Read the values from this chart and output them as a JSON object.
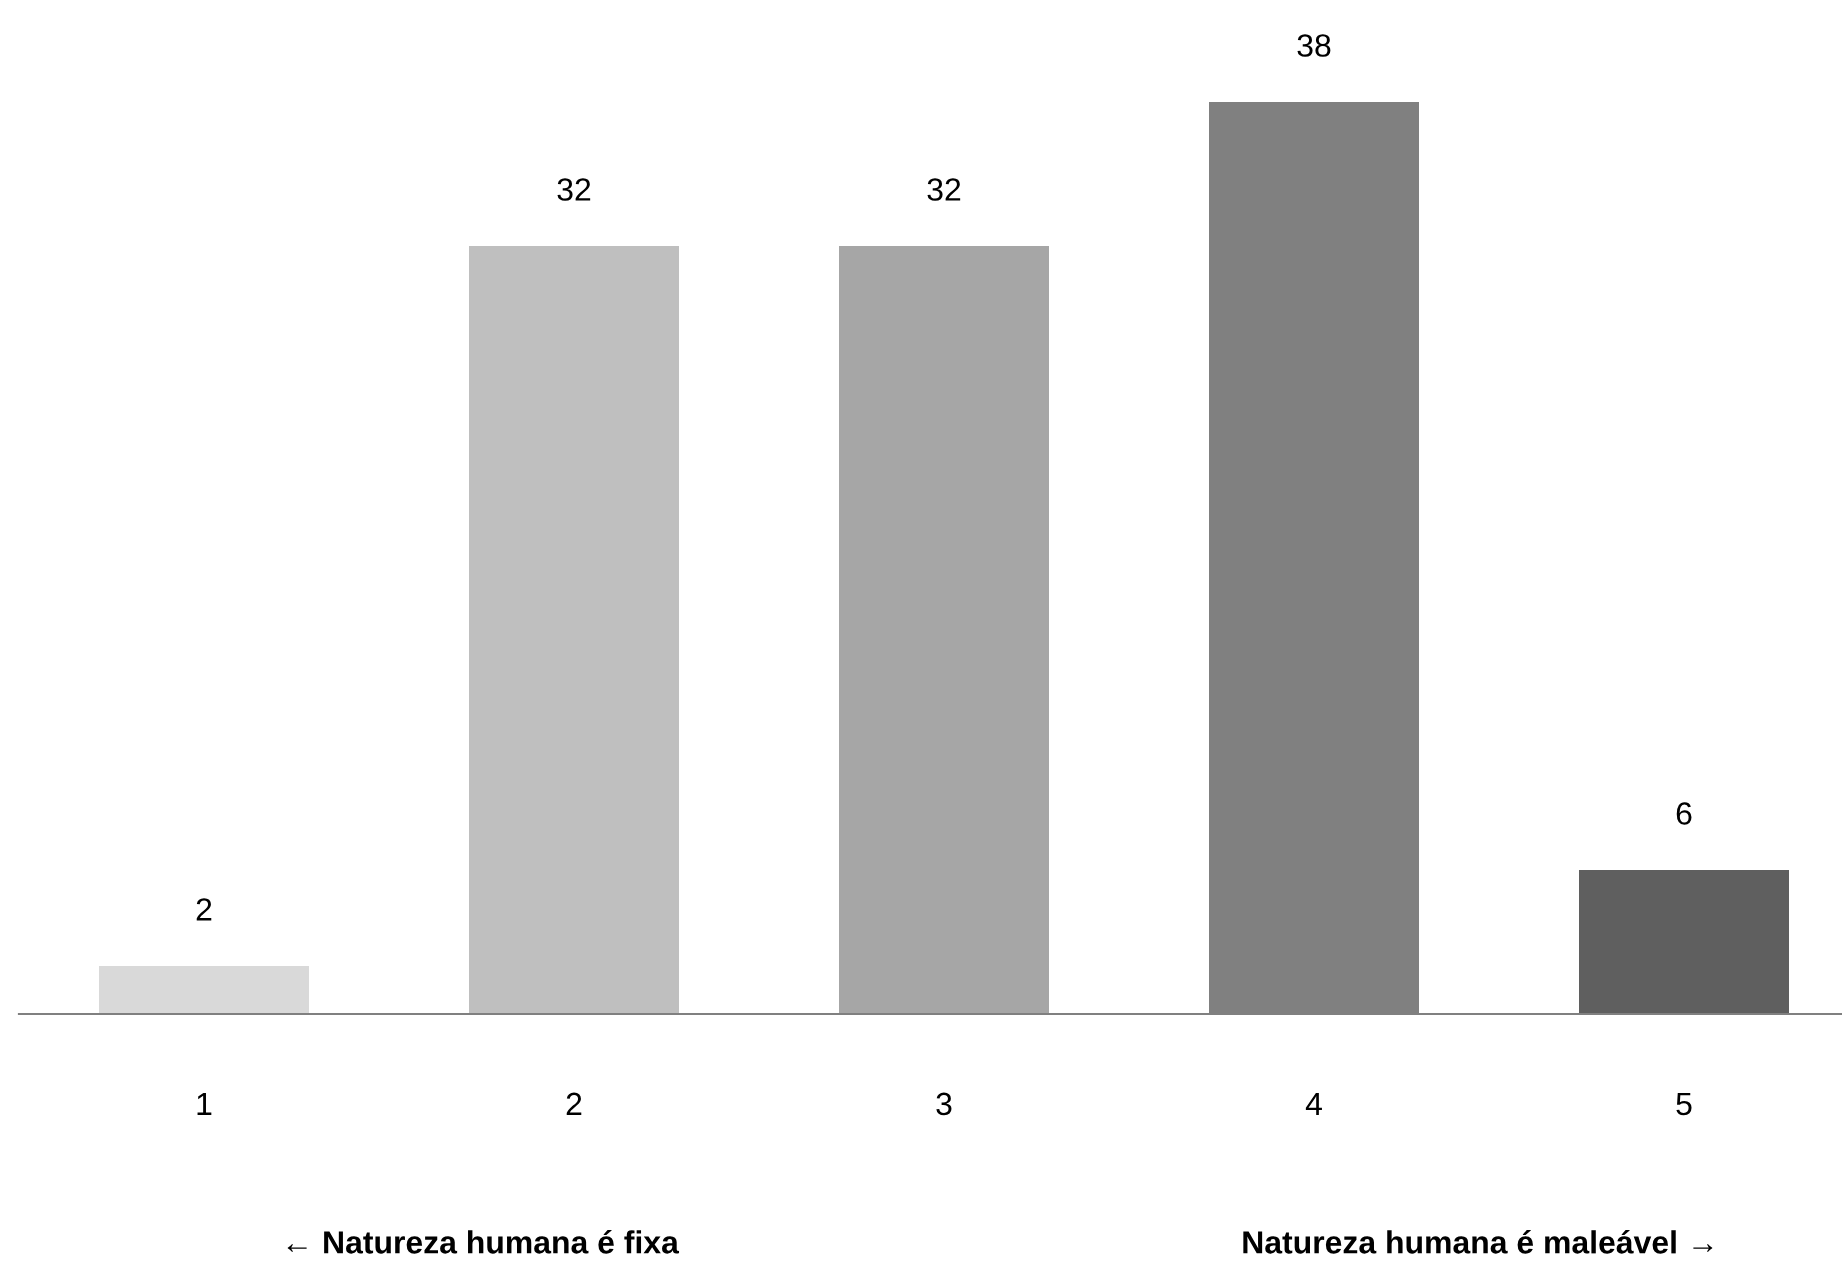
{
  "chart_data": {
    "type": "bar",
    "categories": [
      "1",
      "2",
      "3",
      "4",
      "5"
    ],
    "values": [
      2,
      32,
      32,
      38,
      6
    ],
    "colors": [
      "#d9d9d9",
      "#bfbfbf",
      "#a6a6a6",
      "#808080",
      "#5f5f5f"
    ],
    "data_labels": true,
    "grid": false,
    "legend": false,
    "annotations": [
      "← Natureza humana é fixa",
      "Natureza humana é maleável →"
    ]
  }
}
